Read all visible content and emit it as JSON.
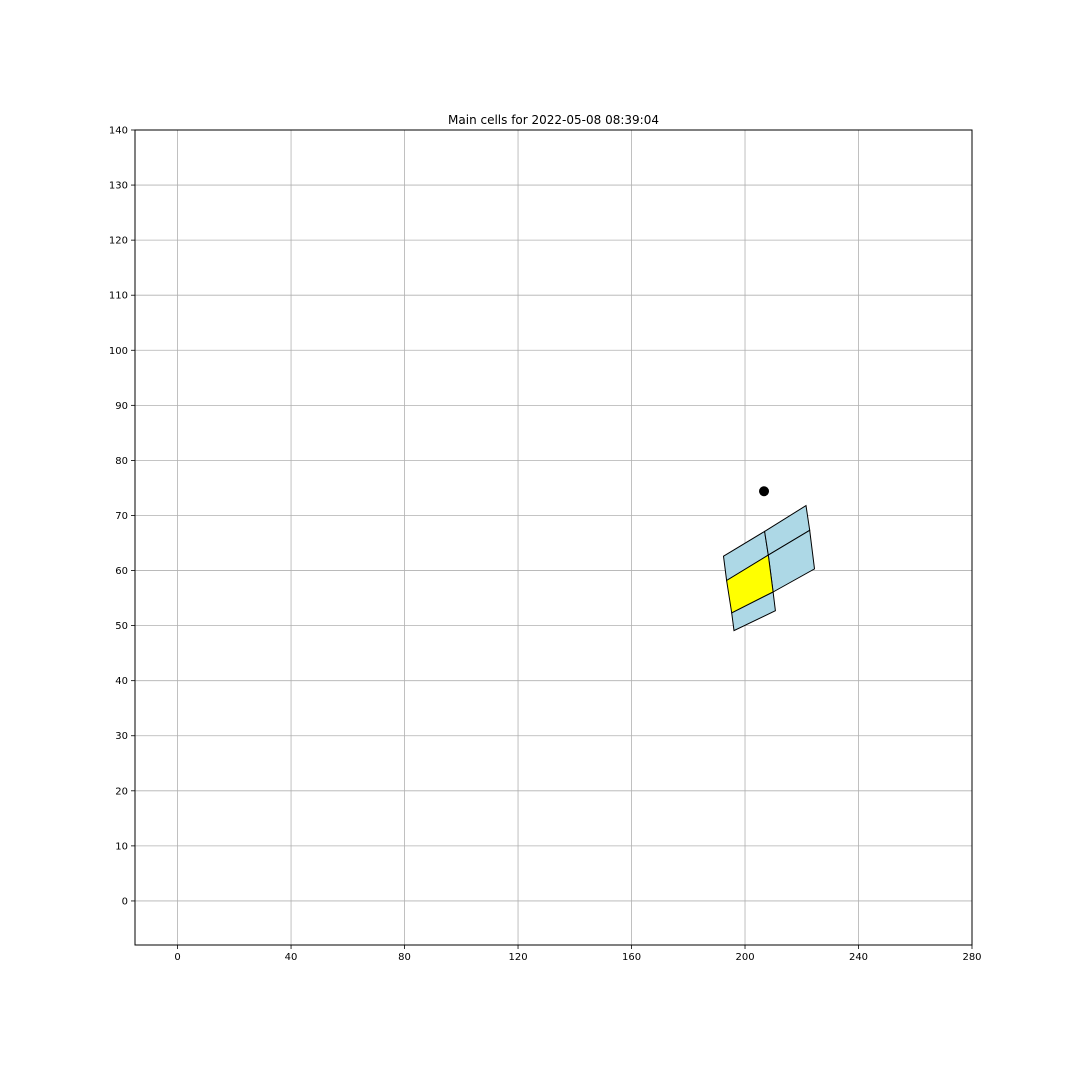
{
  "chart_data": {
    "type": "scatter",
    "title": "Main cells for 2022-05-08  08:39:04",
    "xlabel": "",
    "ylabel": "",
    "xlim": [
      -15,
      280
    ],
    "ylim": [
      -8,
      140
    ],
    "x_ticks": [
      0,
      40,
      80,
      120,
      160,
      200,
      240,
      280
    ],
    "y_ticks": [
      0,
      10,
      20,
      30,
      40,
      50,
      60,
      70,
      80,
      90,
      100,
      110,
      120,
      130,
      140
    ],
    "grid": true,
    "cells": [
      {
        "name": "cell-upper-left",
        "fill": "#add8e6",
        "points": [
          [
            192.4,
            62.6
          ],
          [
            206.9,
            67.1
          ],
          [
            208.2,
            62.8
          ],
          [
            193.5,
            58.2
          ]
        ]
      },
      {
        "name": "cell-upper-right",
        "fill": "#add8e6",
        "points": [
          [
            206.9,
            67.1
          ],
          [
            221.5,
            71.8
          ],
          [
            222.8,
            67.3
          ],
          [
            208.2,
            62.8
          ]
        ]
      },
      {
        "name": "cell-right",
        "fill": "#add8e6",
        "points": [
          [
            208.2,
            62.8
          ],
          [
            222.8,
            67.3
          ],
          [
            224.5,
            60.3
          ],
          [
            209.9,
            56.1
          ]
        ]
      },
      {
        "name": "cell-highlighted",
        "fill": "#ffff00",
        "points": [
          [
            193.5,
            58.2
          ],
          [
            208.2,
            62.8
          ],
          [
            209.9,
            56.1
          ],
          [
            195.3,
            52.3
          ]
        ]
      },
      {
        "name": "cell-lower",
        "fill": "#add8e6",
        "points": [
          [
            195.3,
            52.3
          ],
          [
            209.9,
            56.1
          ],
          [
            210.7,
            52.7
          ],
          [
            196.1,
            49.1
          ]
        ]
      }
    ],
    "points": [
      {
        "x": 206.7,
        "y": 74.4,
        "color": "#000000"
      }
    ]
  }
}
